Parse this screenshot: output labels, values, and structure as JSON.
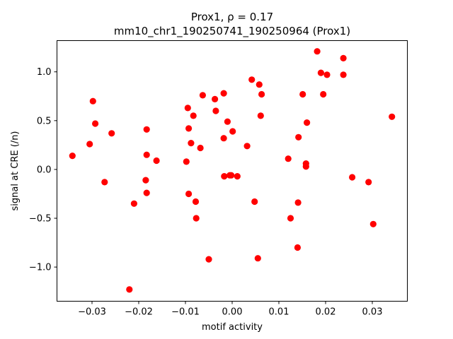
{
  "chart_data": {
    "type": "scatter",
    "title_line1": "Prox1, ρ = 0.17",
    "title_line2": "mm10_chr1_190250741_190250964 (Prox1)",
    "xlabel": "motif activity",
    "ylabel": "signal at CRE (/n)",
    "xlim": [
      -0.0375,
      0.0375
    ],
    "ylim": [
      -1.35,
      1.32
    ],
    "xticks": [
      -0.03,
      -0.02,
      -0.01,
      0.0,
      0.01,
      0.02,
      0.03
    ],
    "xtick_labels": [
      "−0.03",
      "−0.02",
      "−0.01",
      "0.00",
      "0.01",
      "0.02",
      "0.03"
    ],
    "yticks": [
      -1.0,
      -0.5,
      0.0,
      0.5,
      1.0
    ],
    "ytick_labels": [
      "−1.0",
      "−0.5",
      "0.0",
      "0.5",
      "1.0"
    ],
    "marker_color": "#ff0000",
    "grid": false,
    "points": [
      {
        "x": -0.0342,
        "y": 0.14
      },
      {
        "x": -0.0305,
        "y": 0.26
      },
      {
        "x": -0.0298,
        "y": 0.7
      },
      {
        "x": -0.0293,
        "y": 0.47
      },
      {
        "x": -0.0273,
        "y": -0.13
      },
      {
        "x": -0.0258,
        "y": 0.37
      },
      {
        "x": -0.022,
        "y": -1.23
      },
      {
        "x": -0.021,
        "y": -0.35
      },
      {
        "x": -0.0185,
        "y": -0.11
      },
      {
        "x": -0.0183,
        "y": 0.41
      },
      {
        "x": -0.0183,
        "y": 0.15
      },
      {
        "x": -0.0183,
        "y": -0.24
      },
      {
        "x": -0.0162,
        "y": 0.09
      },
      {
        "x": -0.0098,
        "y": 0.08
      },
      {
        "x": -0.0095,
        "y": 0.63
      },
      {
        "x": -0.0093,
        "y": 0.42
      },
      {
        "x": -0.0093,
        "y": -0.25
      },
      {
        "x": -0.0088,
        "y": 0.27
      },
      {
        "x": -0.0083,
        "y": 0.55
      },
      {
        "x": -0.0078,
        "y": -0.33
      },
      {
        "x": -0.0077,
        "y": -0.5
      },
      {
        "x": -0.0068,
        "y": 0.22
      },
      {
        "x": -0.0063,
        "y": 0.76
      },
      {
        "x": -0.005,
        "y": -0.92
      },
      {
        "x": -0.0037,
        "y": 0.72
      },
      {
        "x": -0.0035,
        "y": 0.6
      },
      {
        "x": -0.0018,
        "y": 0.78
      },
      {
        "x": -0.0018,
        "y": 0.32
      },
      {
        "x": -0.0017,
        "y": -0.07
      },
      {
        "x": -0.001,
        "y": 0.49
      },
      {
        "x": -0.0005,
        "y": -0.06
      },
      {
        "x": -0.0002,
        "y": -0.06
      },
      {
        "x": 0.0001,
        "y": 0.39
      },
      {
        "x": 0.0011,
        "y": -0.07
      },
      {
        "x": 0.0032,
        "y": 0.24
      },
      {
        "x": 0.0042,
        "y": 0.92
      },
      {
        "x": 0.0048,
        "y": -0.33
      },
      {
        "x": 0.0055,
        "y": -0.91
      },
      {
        "x": 0.0058,
        "y": 0.87
      },
      {
        "x": 0.0061,
        "y": 0.55
      },
      {
        "x": 0.0063,
        "y": 0.77
      },
      {
        "x": 0.012,
        "y": 0.11
      },
      {
        "x": 0.0125,
        "y": -0.5
      },
      {
        "x": 0.014,
        "y": -0.8
      },
      {
        "x": 0.0141,
        "y": -0.34
      },
      {
        "x": 0.0142,
        "y": 0.33
      },
      {
        "x": 0.0151,
        "y": 0.77
      },
      {
        "x": 0.0158,
        "y": 0.06
      },
      {
        "x": 0.0158,
        "y": 0.03
      },
      {
        "x": 0.016,
        "y": 0.48
      },
      {
        "x": 0.0182,
        "y": 1.21
      },
      {
        "x": 0.019,
        "y": 0.99
      },
      {
        "x": 0.0195,
        "y": 0.77
      },
      {
        "x": 0.0203,
        "y": 0.97
      },
      {
        "x": 0.0238,
        "y": 1.14
      },
      {
        "x": 0.0238,
        "y": 0.97
      },
      {
        "x": 0.0257,
        "y": -0.08
      },
      {
        "x": 0.0292,
        "y": -0.13
      },
      {
        "x": 0.0302,
        "y": -0.56
      },
      {
        "x": 0.0342,
        "y": 0.54
      }
    ]
  }
}
